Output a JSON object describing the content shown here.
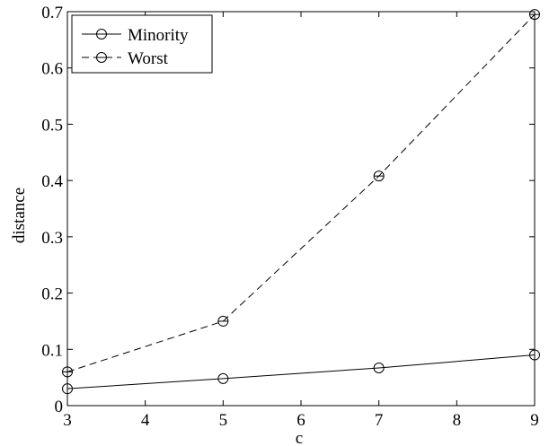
{
  "chart_data": {
    "type": "line",
    "title": "",
    "xlabel": "c",
    "ylabel": "distance",
    "xlim": [
      3,
      9
    ],
    "ylim": [
      0,
      0.7
    ],
    "x_ticks": [
      3,
      4,
      5,
      6,
      7,
      8,
      9
    ],
    "y_ticks": [
      0,
      0.1,
      0.2,
      0.3,
      0.4,
      0.5,
      0.6,
      0.7
    ],
    "x": [
      3,
      5,
      7,
      9
    ],
    "series": [
      {
        "name": "Minority",
        "values": [
          0.03,
          0.048,
          0.067,
          0.09
        ],
        "line_style": "solid",
        "marker": "circle",
        "color": "#000000"
      },
      {
        "name": "Worst",
        "values": [
          0.06,
          0.15,
          0.408,
          0.695
        ],
        "line_style": "dashed",
        "marker": "circle-with-bar",
        "color": "#000000"
      }
    ],
    "legend_position": "top-left",
    "grid": false
  }
}
